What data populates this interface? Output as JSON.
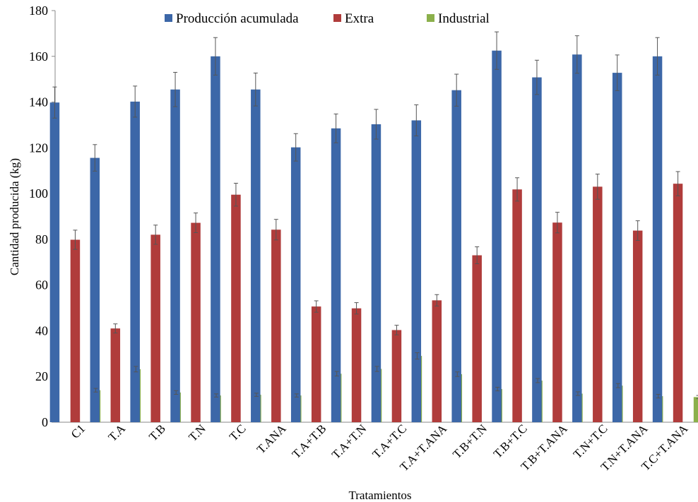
{
  "chart_data": {
    "type": "bar",
    "title": "",
    "xlabel": "Tratamientos",
    "ylabel": "Cantidad producida (kg)",
    "ylim": [
      0,
      180
    ],
    "yticks": [
      "0",
      "20",
      "40",
      "60",
      "80",
      "100",
      "120",
      "140",
      "160",
      "180"
    ],
    "grid": false,
    "legend_position": "top",
    "categories": [
      "C1",
      "T.A",
      "T.B",
      "T.N",
      "T.C",
      "T.ANA",
      "T.A+T.B",
      "T.A+T.N",
      "T.A+T.C",
      "T.A+T.ANA",
      "T.B+T.N",
      "T.B+T.C",
      "T.B+T.ANA",
      "T.N+T.C",
      "T.N+T.ANA",
      "T.C+T.ANA"
    ],
    "series": [
      {
        "name": "Producción acumulada",
        "color": "#3c67a8",
        "values": [
          139.8,
          115.6,
          140.2,
          145.5,
          160.0,
          145.5,
          120.2,
          128.5,
          130.3,
          132.0,
          145.2,
          162.5,
          150.8,
          160.8,
          152.8,
          160.0
        ],
        "errors": [
          6.8,
          5.8,
          6.8,
          7.5,
          8.2,
          7.2,
          6.0,
          6.3,
          6.5,
          6.8,
          7.0,
          8.2,
          7.5,
          8.2,
          7.8,
          8.2
        ]
      },
      {
        "name": "Extra",
        "color": "#b03c3b",
        "values": [
          79.8,
          41.0,
          82.0,
          87.2,
          99.5,
          84.2,
          50.6,
          49.8,
          40.3,
          53.3,
          73.0,
          101.8,
          87.3,
          103.0,
          83.8,
          104.3
        ],
        "errors": [
          4.2,
          2.0,
          4.2,
          4.3,
          5.0,
          4.5,
          2.5,
          2.5,
          2.1,
          2.5,
          3.7,
          5.1,
          4.5,
          5.5,
          4.3,
          5.3
        ]
      },
      {
        "name": "Industrial",
        "color": "#8bb04b",
        "values": [
          14.0,
          23.2,
          13.0,
          11.7,
          12.0,
          11.7,
          21.2,
          23.3,
          29.0,
          21.0,
          14.5,
          18.2,
          12.5,
          16.0,
          11.4,
          11.0
        ],
        "errors": [
          0.8,
          1.2,
          0.8,
          0.7,
          0.7,
          0.7,
          1.0,
          1.1,
          1.4,
          1.0,
          0.8,
          0.9,
          0.8,
          0.9,
          0.8,
          0.7
        ]
      }
    ]
  }
}
